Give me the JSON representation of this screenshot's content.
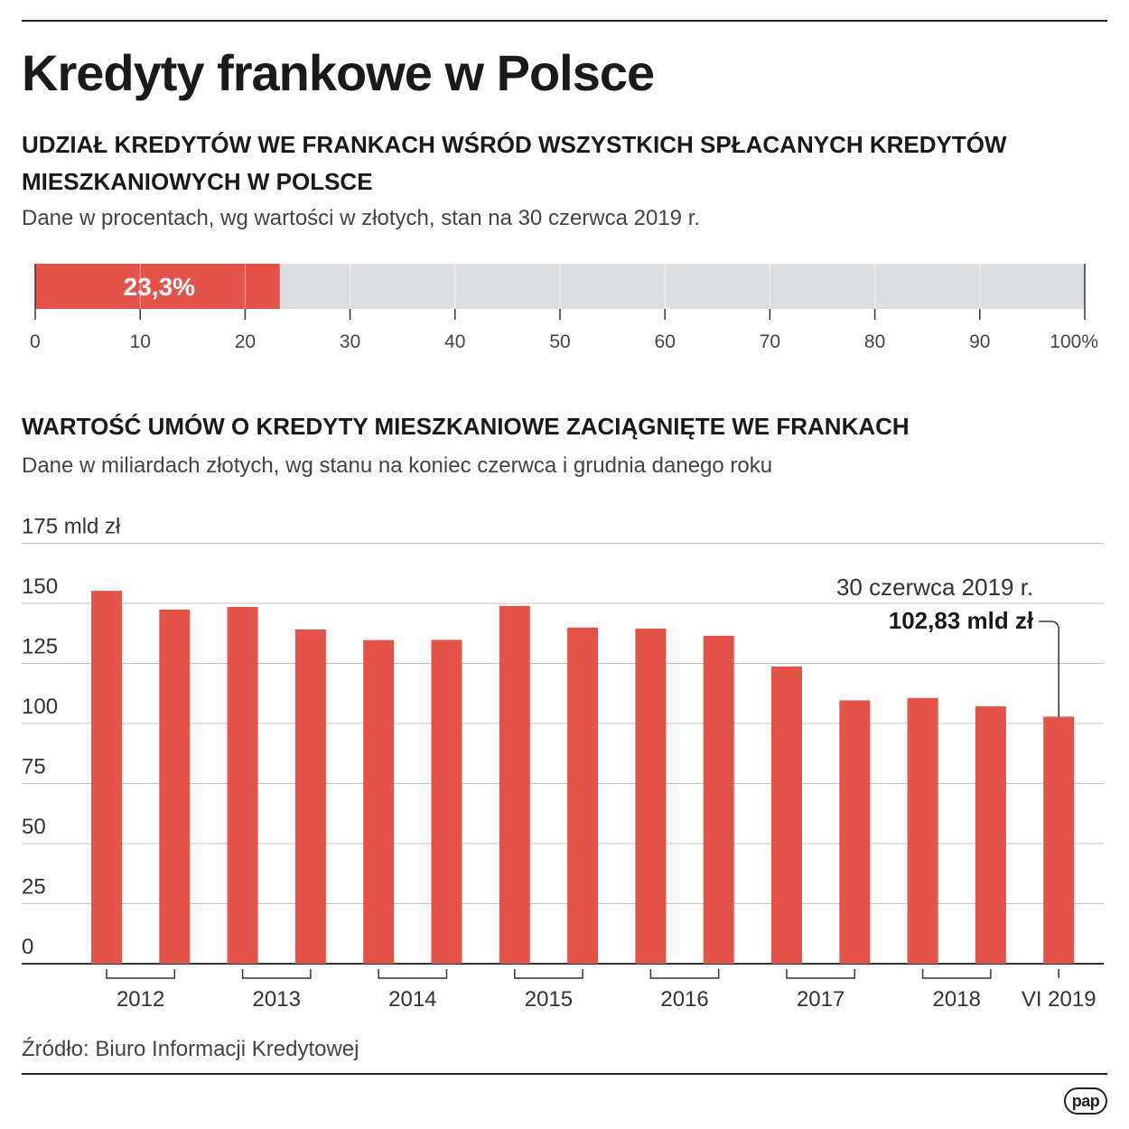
{
  "title": "Kredyty frankowe w Polsce",
  "colors": {
    "bar": "#e4534a",
    "track": "#dcdfe2",
    "grid": "#c4c4c4",
    "text": "#222222"
  },
  "section1": {
    "heading": "UDZIAŁ KREDYTÓW WE FRANKACH WŚRÓD WSZYSTKICH SPŁACANYCH KREDYTÓW MIESZKANIOWYCH W POLSCE",
    "subtitle": "Dane w procentach, wg wartości w złotych, stan na 30 czerwca 2019 r."
  },
  "section2": {
    "heading": "WARTOŚĆ UMÓW O KREDYTY MIESZKANIOWE ZACIĄGNIĘTE WE FRANKACH",
    "subtitle": "Dane w miliardach złotych, wg stanu na koniec czerwca i grudnia danego roku"
  },
  "source": "Źródło: Biuro Informacji Kredytowej",
  "logo_text": "pap",
  "chart_data": [
    {
      "type": "bar",
      "orientation": "horizontal",
      "value": 23.3,
      "value_label": "23,3%",
      "xlim": [
        0,
        100
      ],
      "ticks": [
        "0",
        "10",
        "20",
        "30",
        "40",
        "50",
        "60",
        "70",
        "80",
        "90",
        "100%"
      ]
    },
    {
      "type": "bar",
      "ylim": [
        0,
        175
      ],
      "y_ticks": [
        "0",
        "25",
        "50",
        "75",
        "100",
        "125",
        "150",
        "175 mld zł"
      ],
      "groups": [
        "2012",
        "2013",
        "2014",
        "2015",
        "2016",
        "2017",
        "2018",
        "VI 2019"
      ],
      "values": [
        155.2,
        147.4,
        148.5,
        139.1,
        134.7,
        134.8,
        148.9,
        139.9,
        139.5,
        136.5,
        123.7,
        109.6,
        110.6,
        107.1,
        102.83
      ],
      "annotation": {
        "date": "30 czerwca 2019 r.",
        "value": "102,83 mld zł"
      }
    }
  ]
}
